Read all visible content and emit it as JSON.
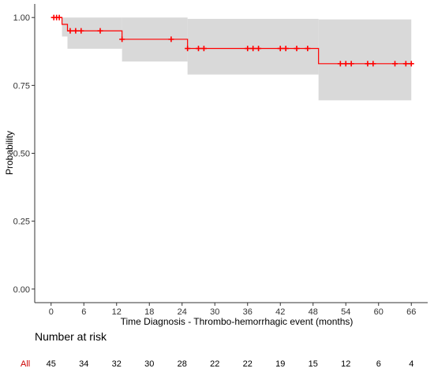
{
  "chart_data": {
    "type": "line",
    "xlabel": "Time Diagnosis - Thrombo-hemorrhagic event (months)",
    "ylabel": "Probability",
    "xlim": [
      -3,
      69
    ],
    "ylim": [
      -0.05,
      1.05
    ],
    "x_ticks": [
      0,
      6,
      12,
      18,
      24,
      30,
      36,
      42,
      48,
      54,
      60,
      66
    ],
    "y_ticks": [
      0.0,
      0.25,
      0.5,
      0.75,
      1.0
    ],
    "y_tick_labels": [
      "0.00",
      "0.25",
      "0.50",
      "0.75",
      "1.00"
    ],
    "grid": false,
    "series": [
      {
        "name": "All",
        "color": "#ff0000",
        "ci_color": "#d9d9d9",
        "steps": [
          {
            "x": 0,
            "y": 1.0,
            "lower": 1.0,
            "upper": 1.0
          },
          {
            "x": 2,
            "y": 0.975,
            "lower": 0.93,
            "upper": 1.0
          },
          {
            "x": 3,
            "y": 0.951,
            "lower": 0.885,
            "upper": 1.0
          },
          {
            "x": 13,
            "y": 0.92,
            "lower": 0.838,
            "upper": 1.0
          },
          {
            "x": 25,
            "y": 0.886,
            "lower": 0.79,
            "upper": 0.995
          },
          {
            "x": 49,
            "y": 0.83,
            "lower": 0.695,
            "upper": 0.993
          }
        ],
        "x_end": 66,
        "censored": [
          {
            "x": 0.5,
            "y": 1.0
          },
          {
            "x": 1,
            "y": 1.0
          },
          {
            "x": 1.5,
            "y": 1.0
          },
          {
            "x": 3.5,
            "y": 0.951
          },
          {
            "x": 4.5,
            "y": 0.951
          },
          {
            "x": 5.5,
            "y": 0.951
          },
          {
            "x": 9,
            "y": 0.951
          },
          {
            "x": 13,
            "y": 0.92
          },
          {
            "x": 22,
            "y": 0.92
          },
          {
            "x": 25,
            "y": 0.886
          },
          {
            "x": 27,
            "y": 0.886
          },
          {
            "x": 28,
            "y": 0.886
          },
          {
            "x": 36,
            "y": 0.886
          },
          {
            "x": 37,
            "y": 0.886
          },
          {
            "x": 38,
            "y": 0.886
          },
          {
            "x": 42,
            "y": 0.886
          },
          {
            "x": 43,
            "y": 0.886
          },
          {
            "x": 45,
            "y": 0.886
          },
          {
            "x": 47,
            "y": 0.886
          },
          {
            "x": 53,
            "y": 0.83
          },
          {
            "x": 54,
            "y": 0.83
          },
          {
            "x": 55,
            "y": 0.83
          },
          {
            "x": 58,
            "y": 0.83
          },
          {
            "x": 59,
            "y": 0.83
          },
          {
            "x": 63,
            "y": 0.83
          },
          {
            "x": 65,
            "y": 0.83
          },
          {
            "x": 66,
            "y": 0.83
          }
        ]
      }
    ],
    "risk_table": {
      "title": "Number at risk",
      "group": "All",
      "values": [
        45,
        34,
        32,
        30,
        28,
        22,
        22,
        19,
        15,
        12,
        6,
        4
      ]
    }
  }
}
